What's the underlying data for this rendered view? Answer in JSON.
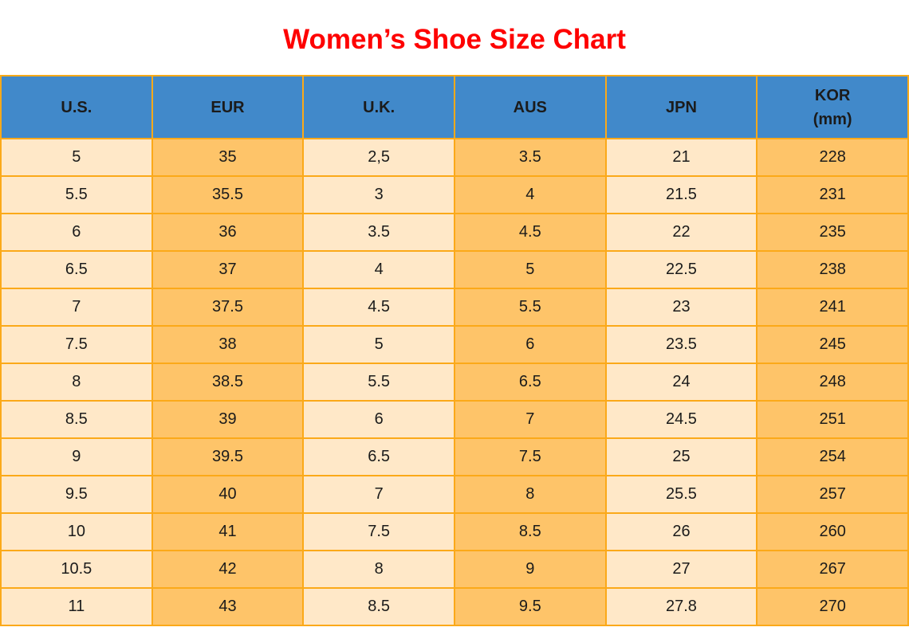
{
  "page": {
    "title": "Women’s Shoe Size Chart"
  },
  "chart_data": {
    "type": "table",
    "title": "Women’s Shoe Size Chart",
    "columns": [
      "U.S.",
      "EUR",
      "U.K.",
      "AUS",
      "JPN",
      "KOR\n(mm)"
    ],
    "rows": [
      [
        "5",
        "35",
        "2,5",
        "3.5",
        "21",
        "228"
      ],
      [
        "5.5",
        "35.5",
        "3",
        "4",
        "21.5",
        "231"
      ],
      [
        "6",
        "36",
        "3.5",
        "4.5",
        "22",
        "235"
      ],
      [
        "6.5",
        "37",
        "4",
        "5",
        "22.5",
        "238"
      ],
      [
        "7",
        "37.5",
        "4.5",
        "5.5",
        "23",
        "241"
      ],
      [
        "7.5",
        "38",
        "5",
        "6",
        "23.5",
        "245"
      ],
      [
        "8",
        "38.5",
        "5.5",
        "6.5",
        "24",
        "248"
      ],
      [
        "8.5",
        "39",
        "6",
        "7",
        "24.5",
        "251"
      ],
      [
        "9",
        "39.5",
        "6.5",
        "7.5",
        "25",
        "254"
      ],
      [
        "9.5",
        "40",
        "7",
        "8",
        "25.5",
        "257"
      ],
      [
        "10",
        "41",
        "7.5",
        "8.5",
        "26",
        "260"
      ],
      [
        "10.5",
        "42",
        "8",
        "9",
        "27",
        "267"
      ],
      [
        "11",
        "43",
        "8.5",
        "9.5",
        "27.8",
        "270"
      ]
    ],
    "layout": {
      "column_stripes": [
        "cream",
        "orange",
        "cream",
        "orange",
        "cream",
        "orange"
      ],
      "grid": true,
      "header_position": "top"
    },
    "colors": {
      "title_red": "#fe0000",
      "header_blue": "#4189ca",
      "cell_cream": "#ffe8c8",
      "cell_orange": "#fec469",
      "border_orange": "#fba919",
      "text_black": "#1b1b1b"
    }
  }
}
